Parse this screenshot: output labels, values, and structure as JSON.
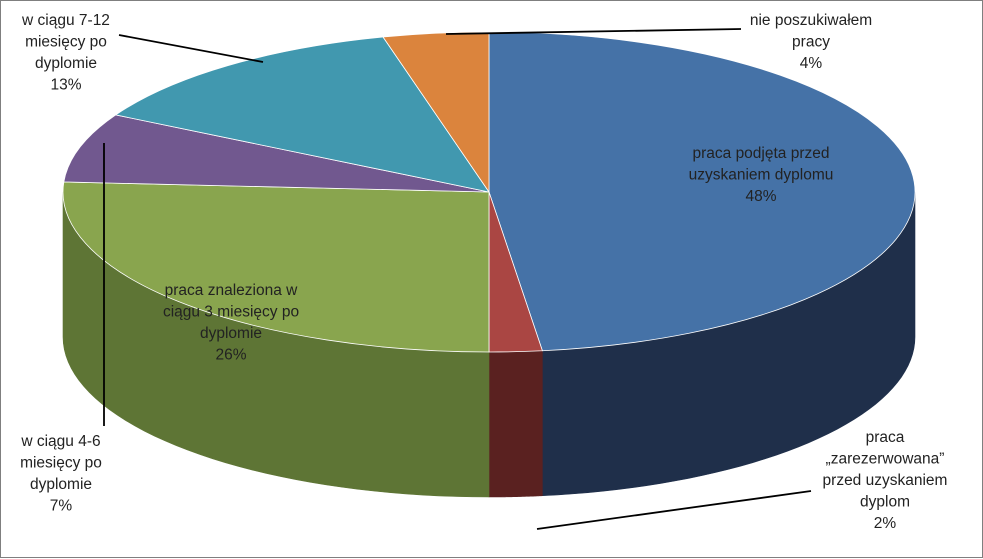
{
  "chart_data": {
    "type": "pie",
    "style": "3d",
    "title": "",
    "slices": [
      {
        "label": [
          "praca podjęta przed",
          "uzyskaniem dyplomu"
        ],
        "value": 48,
        "value_label": "48%",
        "color": "#4572a7",
        "side_color": "#1f2f4a"
      },
      {
        "label": [
          "praca",
          "„zarezerwowana”",
          "przed uzyskaniem",
          "dyplom"
        ],
        "value": 2,
        "value_label": "2%",
        "color": "#aa4643",
        "side_color": "#5a2120"
      },
      {
        "label": [
          "praca znaleziona w",
          "ciągu 3 miesięcy po",
          "dyplomie"
        ],
        "value": 26,
        "value_label": "26%",
        "color": "#89a54e",
        "side_color": "#5e7535"
      },
      {
        "label": [
          "w ciągu 4-6",
          "miesięcy po",
          "dyplomie"
        ],
        "value": 7,
        "value_label": "7%",
        "color": "#71588f",
        "side_color": "#4a3a5e"
      },
      {
        "label": [
          "w ciągu 7-12",
          "miesięcy po",
          "dyplomie"
        ],
        "value": 13,
        "value_label": "13%",
        "color": "#4198af",
        "side_color": "#2a6472"
      },
      {
        "label": [
          "nie poszukiwałem",
          "pracy"
        ],
        "value": 4,
        "value_label": "4%",
        "color": "#db843d",
        "side_color": "#8f5426"
      }
    ]
  }
}
